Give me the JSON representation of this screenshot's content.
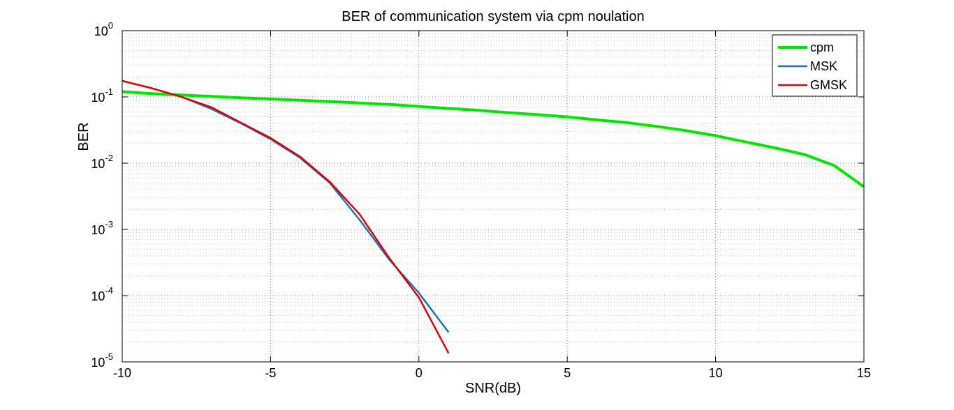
{
  "chart_data": {
    "type": "line",
    "title": "BER of communication system via cpm noulation",
    "xlabel": "SNR(dB)",
    "ylabel": "BER",
    "xlim": [
      -10,
      15
    ],
    "ylim": [
      1e-05,
      1
    ],
    "yscale": "log",
    "grid": true,
    "minor_grid": true,
    "legend_position": "top-right",
    "x_ticks": [
      -10,
      -5,
      0,
      5,
      10,
      15
    ],
    "x_tick_labels": [
      "-10",
      "-5",
      "0",
      "5",
      "10",
      "15"
    ],
    "y_ticks": [
      1e-05,
      0.0001,
      0.001,
      0.01,
      0.1,
      1
    ],
    "y_tick_labels": [
      {
        "base": "10",
        "exp": "-5"
      },
      {
        "base": "10",
        "exp": "-4"
      },
      {
        "base": "10",
        "exp": "-3"
      },
      {
        "base": "10",
        "exp": "-2"
      },
      {
        "base": "10",
        "exp": "-1"
      },
      {
        "base": "10",
        "exp": "0"
      }
    ],
    "series": [
      {
        "name": "cpm",
        "color": "#00e600",
        "x": [
          -10,
          -9,
          -8,
          -7,
          -6,
          -5,
          -4,
          -3,
          -2,
          -1,
          0,
          1,
          2,
          3,
          4,
          5,
          6,
          7,
          8,
          9,
          10,
          11,
          12,
          13,
          14,
          15
        ],
        "y": [
          0.12,
          0.112,
          0.107,
          0.102,
          0.097,
          0.093,
          0.089,
          0.085,
          0.081,
          0.077,
          0.072,
          0.067,
          0.063,
          0.058,
          0.054,
          0.05,
          0.045,
          0.041,
          0.036,
          0.031,
          0.026,
          0.021,
          0.017,
          0.0135,
          0.0092,
          0.0044
        ]
      },
      {
        "name": "MSK",
        "color": "#1f6fb4",
        "x": [
          -10,
          -9,
          -8,
          -7,
          -6,
          -5,
          -4,
          -3,
          -2,
          -1,
          0,
          1
        ],
        "y": [
          0.175,
          0.135,
          0.1,
          0.066,
          0.04,
          0.023,
          0.012,
          0.005,
          0.0014,
          0.00035,
          0.00011,
          2.8e-05
        ]
      },
      {
        "name": "GMSK",
        "color": "#e00000",
        "x": [
          -10,
          -9,
          -8,
          -7,
          -6,
          -5,
          -4,
          -3,
          -2,
          -1,
          0,
          1
        ],
        "y": [
          0.175,
          0.135,
          0.1,
          0.07,
          0.041,
          0.024,
          0.0125,
          0.0052,
          0.0017,
          0.00037,
          9.4e-05,
          1.35e-05
        ]
      }
    ]
  }
}
